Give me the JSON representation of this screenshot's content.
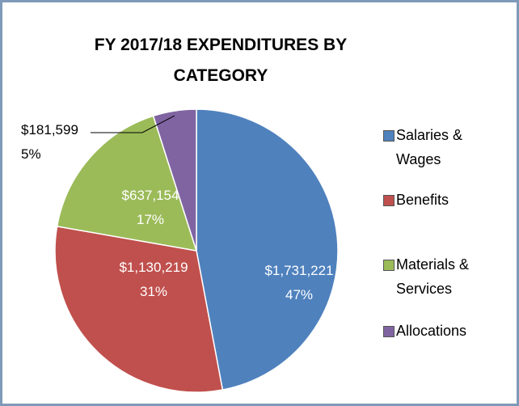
{
  "chart_data": {
    "type": "pie",
    "title": "FY 2017/18 EXPENDITURES BY CATEGORY",
    "categories": [
      "Salaries & Wages",
      "Benefits",
      "Materials & Services",
      "Allocations"
    ],
    "values": [
      1731221,
      1130219,
      637154,
      181599
    ],
    "value_labels": [
      "$1,731,221",
      "$1,130,219",
      "$637,154",
      "$181,599"
    ],
    "percent_labels": [
      "47%",
      "31%",
      "17%",
      "5%"
    ],
    "colors": [
      "#4f81bd",
      "#c0504d",
      "#9bbb59",
      "#8064a2"
    ],
    "legend": "right"
  }
}
